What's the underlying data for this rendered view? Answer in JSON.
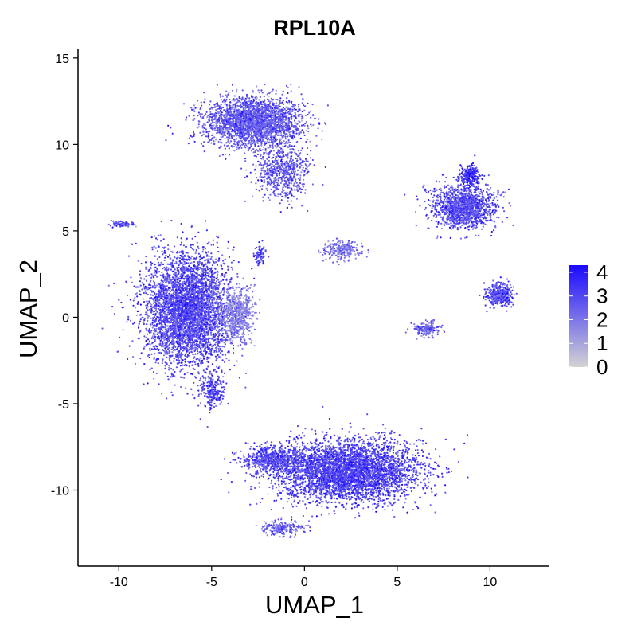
{
  "chart_data": {
    "type": "scatter",
    "title": "RPL10A",
    "xlabel": "UMAP_1",
    "ylabel": "UMAP_2",
    "xlim": [
      -12.2,
      13.2
    ],
    "ylim": [
      -14.4,
      15.5
    ],
    "x_ticks": [
      -10,
      -5,
      0,
      5,
      10
    ],
    "x_tick_labels": [
      "-10",
      "-5",
      "0",
      "5",
      "10"
    ],
    "y_ticks": [
      -10,
      -5,
      0,
      5,
      10,
      15
    ],
    "y_tick_labels": [
      "-10",
      "-5",
      "0",
      "5",
      "10",
      "15"
    ],
    "grid": false,
    "legend_position": "right",
    "colorbar": {
      "min": 0,
      "max": 4.3,
      "ticks": [
        0,
        1,
        2,
        3,
        4
      ],
      "tick_labels": [
        "0",
        "1",
        "2",
        "3",
        "4"
      ],
      "low_color": "#d3d3d3",
      "high_color": "#1a0aff"
    },
    "clusters": [
      {
        "name": "top-cluster",
        "center": [
          -2.7,
          11.3
        ],
        "spread": [
          2.4,
          1.3
        ],
        "n": 2600,
        "expr_mean": 2.6
      },
      {
        "name": "top-cluster-tail",
        "center": [
          -1.2,
          8.4
        ],
        "spread": [
          1.3,
          1.5
        ],
        "n": 600,
        "expr_mean": 2.8
      },
      {
        "name": "left-cluster",
        "center": [
          -6.3,
          0.5
        ],
        "spread": [
          2.1,
          2.9
        ],
        "n": 4200,
        "expr_mean": 3.0
      },
      {
        "name": "left-cluster-edge",
        "center": [
          -3.6,
          0.1
        ],
        "spread": [
          0.8,
          1.2
        ],
        "n": 700,
        "expr_mean": 1.7
      },
      {
        "name": "left-lower-tail",
        "center": [
          -5.0,
          -4.3
        ],
        "spread": [
          0.6,
          1.0
        ],
        "n": 220,
        "expr_mean": 3.0
      },
      {
        "name": "small-center-cluster",
        "center": [
          2.0,
          3.9
        ],
        "spread": [
          0.9,
          0.5
        ],
        "n": 260,
        "expr_mean": 2.0
      },
      {
        "name": "small-left-cluster",
        "center": [
          -2.4,
          3.6
        ],
        "spread": [
          0.25,
          0.6
        ],
        "n": 90,
        "expr_mean": 3.0
      },
      {
        "name": "left-streak",
        "center": [
          -9.8,
          5.4
        ],
        "spread": [
          0.55,
          0.18
        ],
        "n": 70,
        "expr_mean": 2.8
      },
      {
        "name": "bottom-cluster",
        "center": [
          2.3,
          -8.9
        ],
        "spread": [
          3.5,
          1.6
        ],
        "n": 4200,
        "expr_mean": 3.1
      },
      {
        "name": "bottom-left-arm",
        "center": [
          -1.8,
          -8.2
        ],
        "spread": [
          1.5,
          0.6
        ],
        "n": 600,
        "expr_mean": 3.0
      },
      {
        "name": "bottom-tail",
        "center": [
          -1.2,
          -12.2
        ],
        "spread": [
          1.0,
          0.45
        ],
        "n": 220,
        "expr_mean": 2.5
      },
      {
        "name": "right-star-cluster",
        "center": [
          8.6,
          6.4
        ],
        "spread": [
          1.5,
          1.1
        ],
        "n": 1400,
        "expr_mean": 2.9
      },
      {
        "name": "right-star-top",
        "center": [
          8.9,
          8.2
        ],
        "spread": [
          0.45,
          0.6
        ],
        "n": 250,
        "expr_mean": 3.5
      },
      {
        "name": "right-mid-cluster",
        "center": [
          10.5,
          1.3
        ],
        "spread": [
          0.65,
          0.6
        ],
        "n": 420,
        "expr_mean": 3.0
      },
      {
        "name": "right-small-cluster",
        "center": [
          6.6,
          -0.7
        ],
        "spread": [
          0.55,
          0.35
        ],
        "n": 200,
        "expr_mean": 2.4
      }
    ]
  }
}
